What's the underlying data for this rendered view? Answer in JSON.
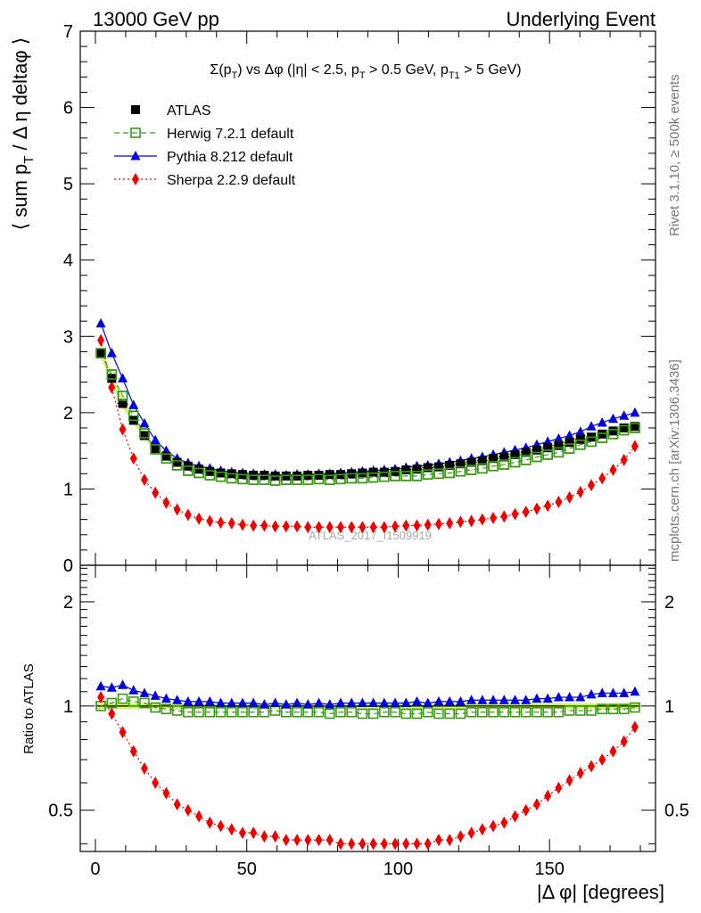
{
  "header": {
    "left": "13000 GeV pp",
    "right": "Underlying Event"
  },
  "title": {
    "t1": "Σ(p",
    "t2": "T",
    "t3": ") vs Δφ (|η| < 2.5, p",
    "t4": "T",
    "t5": " > 0.5 GeV, p",
    "t6": "T1",
    "t7": " > 5 GeV)"
  },
  "side_labels": {
    "rivet": "Rivet 3.1.10, ≥ 500k events",
    "mcplots": "mcplots.cern.ch [arXiv:1306.3436]"
  },
  "watermark": "ATLAS_2017_I1509919",
  "axes": {
    "ylabel_main": {
      "p1": "⟨ sum p",
      "p2": "T",
      "p3": " / Δ η deltaφ ⟩"
    },
    "ylabel_ratio": "Ratio to ATLAS",
    "xlabel": "|Δ φ| [degrees]"
  },
  "chart_data": [
    {
      "type": "scatter",
      "panel": "main",
      "xlim": [
        -5,
        185
      ],
      "ylim": [
        0,
        7
      ],
      "xticks": [
        "0",
        "50",
        "100",
        "150"
      ],
      "yticks": [
        "0",
        "1",
        "2",
        "3",
        "4",
        "5",
        "6",
        "7"
      ],
      "legend_position": "top-left",
      "series": [
        {
          "name": "ATLAS",
          "color": "#000000",
          "marker": "square-filled",
          "x": [
            1.8,
            5.4,
            9,
            12.6,
            16.2,
            19.8,
            23.4,
            27,
            30.6,
            34.2,
            37.8,
            41.4,
            45,
            48.6,
            52.2,
            55.8,
            59.4,
            63,
            66.6,
            70.2,
            73.8,
            77.4,
            81,
            84.6,
            88.2,
            91.8,
            95.4,
            99,
            102.6,
            106.2,
            109.8,
            113.4,
            117,
            120.6,
            124.2,
            127.8,
            131.4,
            135,
            138.6,
            142.2,
            145.8,
            149.4,
            153,
            156.6,
            160.2,
            163.8,
            167.4,
            171,
            174.6,
            178.2
          ],
          "y": [
            2.78,
            2.45,
            2.12,
            1.9,
            1.7,
            1.53,
            1.43,
            1.35,
            1.3,
            1.26,
            1.23,
            1.21,
            1.2,
            1.19,
            1.18,
            1.18,
            1.17,
            1.17,
            1.17,
            1.18,
            1.18,
            1.19,
            1.19,
            1.2,
            1.21,
            1.22,
            1.22,
            1.23,
            1.25,
            1.26,
            1.28,
            1.29,
            1.31,
            1.33,
            1.35,
            1.37,
            1.4,
            1.42,
            1.45,
            1.48,
            1.51,
            1.54,
            1.57,
            1.61,
            1.65,
            1.68,
            1.72,
            1.76,
            1.8,
            1.82
          ]
        },
        {
          "name": "Herwig 7.2.1 default",
          "color": "#3a9a16",
          "marker": "square-open",
          "line": "dashed",
          "x": [
            1.8,
            5.4,
            9,
            12.6,
            16.2,
            19.8,
            23.4,
            27,
            30.6,
            34.2,
            37.8,
            41.4,
            45,
            48.6,
            52.2,
            55.8,
            59.4,
            63,
            66.6,
            70.2,
            73.8,
            77.4,
            81,
            84.6,
            88.2,
            91.8,
            95.4,
            99,
            102.6,
            106.2,
            109.8,
            113.4,
            117,
            120.6,
            124.2,
            127.8,
            131.4,
            135,
            138.6,
            142.2,
            145.8,
            149.4,
            153,
            156.6,
            160.2,
            163.8,
            167.4,
            171,
            174.6,
            178.2
          ],
          "y": [
            2.78,
            2.5,
            2.22,
            1.96,
            1.73,
            1.52,
            1.4,
            1.31,
            1.24,
            1.21,
            1.18,
            1.16,
            1.14,
            1.13,
            1.12,
            1.12,
            1.11,
            1.12,
            1.12,
            1.12,
            1.13,
            1.12,
            1.13,
            1.14,
            1.14,
            1.15,
            1.16,
            1.17,
            1.17,
            1.17,
            1.19,
            1.2,
            1.21,
            1.23,
            1.25,
            1.27,
            1.3,
            1.32,
            1.35,
            1.38,
            1.42,
            1.45,
            1.48,
            1.53,
            1.58,
            1.62,
            1.67,
            1.72,
            1.77,
            1.8
          ]
        },
        {
          "name": "Pythia 8.212 default",
          "color": "#0000dd",
          "marker": "triangle-filled",
          "line": "solid",
          "x": [
            1.8,
            5.4,
            9,
            12.6,
            16.2,
            19.8,
            23.4,
            27,
            30.6,
            34.2,
            37.8,
            41.4,
            45,
            48.6,
            52.2,
            55.8,
            59.4,
            63,
            66.6,
            70.2,
            73.8,
            77.4,
            81,
            84.6,
            88.2,
            91.8,
            95.4,
            99,
            102.6,
            106.2,
            109.8,
            113.4,
            117,
            120.6,
            124.2,
            127.8,
            131.4,
            135,
            138.6,
            142.2,
            145.8,
            149.4,
            153,
            156.6,
            160.2,
            163.8,
            167.4,
            171,
            174.6,
            178.2
          ],
          "y": [
            3.17,
            2.78,
            2.45,
            2.1,
            1.86,
            1.64,
            1.5,
            1.4,
            1.34,
            1.3,
            1.27,
            1.24,
            1.22,
            1.21,
            1.2,
            1.19,
            1.19,
            1.18,
            1.19,
            1.19,
            1.2,
            1.2,
            1.21,
            1.22,
            1.23,
            1.24,
            1.25,
            1.26,
            1.28,
            1.3,
            1.31,
            1.33,
            1.35,
            1.37,
            1.4,
            1.42,
            1.45,
            1.48,
            1.51,
            1.54,
            1.58,
            1.62,
            1.66,
            1.7,
            1.75,
            1.82,
            1.87,
            1.92,
            1.96,
            2.0
          ]
        },
        {
          "name": "Sherpa 2.2.9 default",
          "color": "#ee0000",
          "marker": "diamond-filled",
          "line": "dotted",
          "x": [
            1.8,
            5.4,
            9,
            12.6,
            16.2,
            19.8,
            23.4,
            27,
            30.6,
            34.2,
            37.8,
            41.4,
            45,
            48.6,
            52.2,
            55.8,
            59.4,
            63,
            66.6,
            70.2,
            73.8,
            77.4,
            81,
            84.6,
            88.2,
            91.8,
            95.4,
            99,
            102.6,
            106.2,
            109.8,
            113.4,
            117,
            120.6,
            124.2,
            127.8,
            131.4,
            135,
            138.6,
            142.2,
            145.8,
            149.4,
            153,
            156.6,
            160.2,
            163.8,
            167.4,
            171,
            174.6,
            178.2
          ],
          "y": [
            2.95,
            2.33,
            1.78,
            1.4,
            1.12,
            0.95,
            0.82,
            0.73,
            0.66,
            0.61,
            0.58,
            0.56,
            0.55,
            0.53,
            0.52,
            0.52,
            0.51,
            0.51,
            0.51,
            0.5,
            0.5,
            0.5,
            0.5,
            0.5,
            0.5,
            0.5,
            0.5,
            0.51,
            0.52,
            0.52,
            0.53,
            0.54,
            0.55,
            0.57,
            0.58,
            0.6,
            0.62,
            0.64,
            0.67,
            0.7,
            0.74,
            0.78,
            0.83,
            0.89,
            0.96,
            1.05,
            1.14,
            1.25,
            1.38,
            1.56
          ]
        }
      ]
    },
    {
      "type": "scatter",
      "panel": "ratio",
      "xlim": [
        -5,
        185
      ],
      "ylim": [
        0.38,
        2.55
      ],
      "yscale": "log",
      "xticks": [
        "0",
        "50",
        "100",
        "150"
      ],
      "yticks": [
        "0.5",
        "1",
        "2"
      ],
      "reference_band": {
        "center": 1.0,
        "color": "#ccf55a"
      },
      "series": [
        {
          "name": "Herwig 7.2.1 default",
          "color": "#3a9a16",
          "marker": "square-open",
          "line": "dashed",
          "x": [
            1.8,
            5.4,
            9,
            12.6,
            16.2,
            19.8,
            23.4,
            27,
            30.6,
            34.2,
            37.8,
            41.4,
            45,
            48.6,
            52.2,
            55.8,
            59.4,
            63,
            66.6,
            70.2,
            73.8,
            77.4,
            81,
            84.6,
            88.2,
            91.8,
            95.4,
            99,
            102.6,
            106.2,
            109.8,
            113.4,
            117,
            120.6,
            124.2,
            127.8,
            131.4,
            135,
            138.6,
            142.2,
            145.8,
            149.4,
            153,
            156.6,
            160.2,
            163.8,
            167.4,
            171,
            174.6,
            178.2
          ],
          "y": [
            1.0,
            1.02,
            1.05,
            1.03,
            1.02,
            0.99,
            0.98,
            0.97,
            0.96,
            0.96,
            0.96,
            0.96,
            0.96,
            0.96,
            0.96,
            0.96,
            0.97,
            0.96,
            0.96,
            0.96,
            0.96,
            0.95,
            0.96,
            0.96,
            0.95,
            0.95,
            0.96,
            0.96,
            0.95,
            0.95,
            0.96,
            0.95,
            0.95,
            0.95,
            0.96,
            0.96,
            0.96,
            0.96,
            0.96,
            0.96,
            0.96,
            0.96,
            0.96,
            0.97,
            0.97,
            0.97,
            0.98,
            0.98,
            0.98,
            0.99
          ]
        },
        {
          "name": "Pythia 8.212 default",
          "color": "#0000dd",
          "marker": "triangle-filled",
          "line": "solid",
          "x": [
            1.8,
            5.4,
            9,
            12.6,
            16.2,
            19.8,
            23.4,
            27,
            30.6,
            34.2,
            37.8,
            41.4,
            45,
            48.6,
            52.2,
            55.8,
            59.4,
            63,
            66.6,
            70.2,
            73.8,
            77.4,
            81,
            84.6,
            88.2,
            91.8,
            95.4,
            99,
            102.6,
            106.2,
            109.8,
            113.4,
            117,
            120.6,
            124.2,
            127.8,
            131.4,
            135,
            138.6,
            142.2,
            145.8,
            149.4,
            153,
            156.6,
            160.2,
            163.8,
            167.4,
            171,
            174.6,
            178.2
          ],
          "y": [
            1.14,
            1.13,
            1.15,
            1.11,
            1.09,
            1.07,
            1.05,
            1.04,
            1.03,
            1.03,
            1.03,
            1.02,
            1.02,
            1.02,
            1.02,
            1.01,
            1.02,
            1.01,
            1.02,
            1.01,
            1.02,
            1.01,
            1.02,
            1.02,
            1.02,
            1.02,
            1.02,
            1.02,
            1.02,
            1.03,
            1.02,
            1.03,
            1.03,
            1.03,
            1.04,
            1.04,
            1.04,
            1.04,
            1.04,
            1.04,
            1.05,
            1.05,
            1.06,
            1.06,
            1.06,
            1.08,
            1.09,
            1.09,
            1.09,
            1.1
          ]
        },
        {
          "name": "Sherpa 2.2.9 default",
          "color": "#ee0000",
          "marker": "diamond-filled",
          "line": "dotted",
          "x": [
            1.8,
            5.4,
            9,
            12.6,
            16.2,
            19.8,
            23.4,
            27,
            30.6,
            34.2,
            37.8,
            41.4,
            45,
            48.6,
            52.2,
            55.8,
            59.4,
            63,
            66.6,
            70.2,
            73.8,
            77.4,
            81,
            84.6,
            88.2,
            91.8,
            95.4,
            99,
            102.6,
            106.2,
            109.8,
            113.4,
            117,
            120.6,
            124.2,
            127.8,
            131.4,
            135,
            138.6,
            142.2,
            145.8,
            149.4,
            153,
            156.6,
            160.2,
            163.8,
            167.4,
            171,
            174.6,
            178.2
          ],
          "y": [
            1.06,
            0.95,
            0.84,
            0.74,
            0.66,
            0.6,
            0.56,
            0.52,
            0.5,
            0.48,
            0.46,
            0.45,
            0.44,
            0.43,
            0.43,
            0.42,
            0.42,
            0.41,
            0.41,
            0.41,
            0.41,
            0.41,
            0.4,
            0.4,
            0.4,
            0.4,
            0.4,
            0.4,
            0.4,
            0.4,
            0.4,
            0.41,
            0.41,
            0.42,
            0.43,
            0.44,
            0.45,
            0.46,
            0.48,
            0.5,
            0.52,
            0.55,
            0.58,
            0.61,
            0.64,
            0.67,
            0.7,
            0.74,
            0.79,
            0.87
          ]
        }
      ]
    }
  ]
}
